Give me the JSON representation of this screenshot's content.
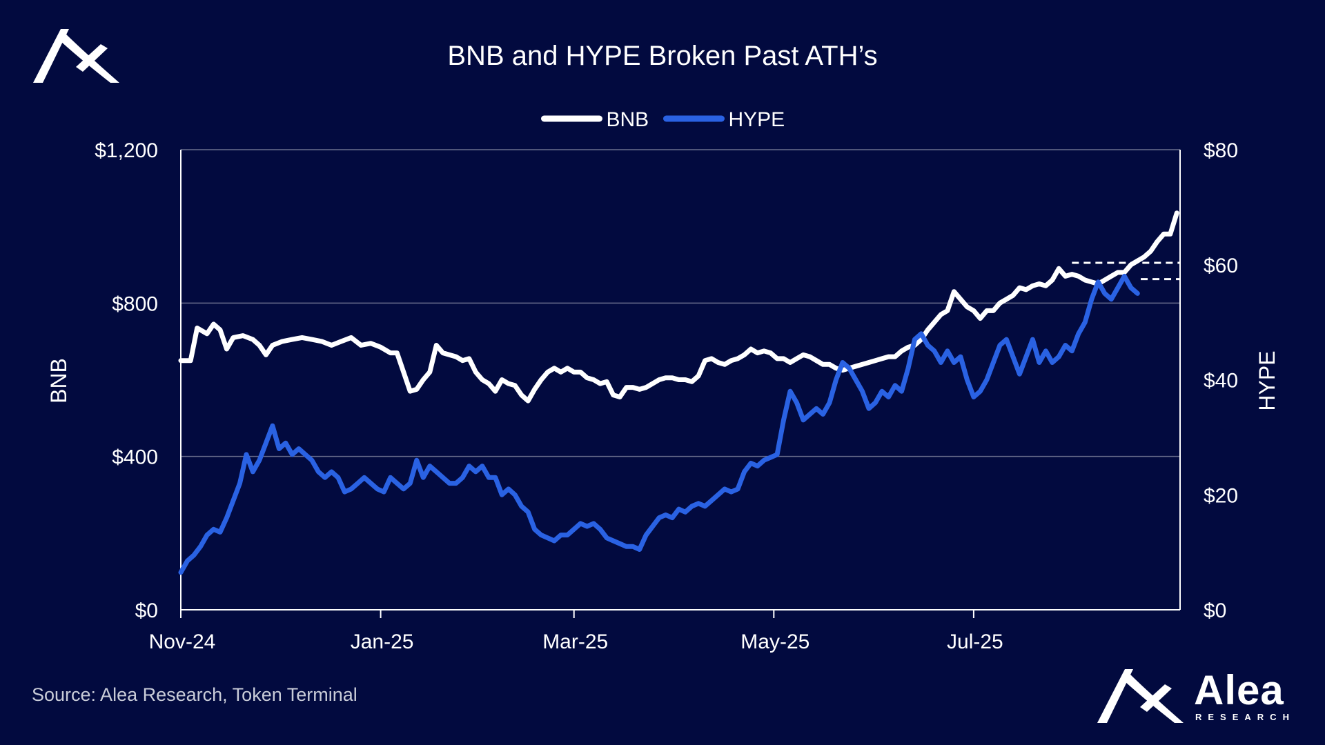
{
  "colors": {
    "background": "#020a3f",
    "bnb": "#ffffff",
    "hype": "#2a62e3",
    "grid": "#6b6f8e"
  },
  "brand": {
    "name": "Alea",
    "tagline": "RESEARCH",
    "icon": "alea-logo-icon"
  },
  "source": "Source: Alea Research, Token Terminal",
  "chart_data": {
    "type": "line",
    "title": "BNB and HYPE Broken Past ATH’s",
    "legend_position": "top-center",
    "grid": {
      "horizontal": true,
      "vertical": false
    },
    "xlim": [
      0,
      305
    ],
    "x_ticks": [
      {
        "day": 0,
        "label": "Nov-24"
      },
      {
        "day": 61,
        "label": "Jan-25"
      },
      {
        "day": 120,
        "label": "Mar-25"
      },
      {
        "day": 181,
        "label": "May-25"
      },
      {
        "day": 242,
        "label": "Jul-25"
      }
    ],
    "y_left": {
      "label": "BNB",
      "lim": [
        0,
        1200
      ],
      "ticks": [
        0,
        400,
        800,
        1200
      ],
      "tick_labels": [
        "$0",
        "$400",
        "$800",
        "$1,200"
      ]
    },
    "y_right": {
      "label": "HYPE",
      "lim": [
        0,
        80
      ],
      "ticks": [
        0,
        20,
        40,
        60,
        80
      ],
      "tick_labels": [
        "$0",
        "$20",
        "$40",
        "$60",
        "$80"
      ]
    },
    "series": [
      {
        "name": "BNB",
        "axis": "left",
        "color": "#ffffff",
        "points": [
          [
            0,
            650
          ],
          [
            3,
            650
          ],
          [
            5,
            735
          ],
          [
            8,
            720
          ],
          [
            10,
            745
          ],
          [
            12,
            730
          ],
          [
            14,
            680
          ],
          [
            16,
            710
          ],
          [
            19,
            715
          ],
          [
            22,
            705
          ],
          [
            24,
            690
          ],
          [
            26,
            665
          ],
          [
            28,
            690
          ],
          [
            31,
            700
          ],
          [
            34,
            705
          ],
          [
            37,
            710
          ],
          [
            40,
            705
          ],
          [
            43,
            700
          ],
          [
            46,
            690
          ],
          [
            49,
            700
          ],
          [
            52,
            710
          ],
          [
            55,
            690
          ],
          [
            58,
            695
          ],
          [
            61,
            685
          ],
          [
            64,
            670
          ],
          [
            66,
            670
          ],
          [
            68,
            620
          ],
          [
            70,
            570
          ],
          [
            72,
            575
          ],
          [
            74,
            600
          ],
          [
            76,
            620
          ],
          [
            78,
            690
          ],
          [
            80,
            670
          ],
          [
            82,
            665
          ],
          [
            84,
            660
          ],
          [
            86,
            650
          ],
          [
            88,
            655
          ],
          [
            90,
            620
          ],
          [
            92,
            600
          ],
          [
            94,
            590
          ],
          [
            96,
            570
          ],
          [
            98,
            600
          ],
          [
            100,
            590
          ],
          [
            102,
            585
          ],
          [
            104,
            560
          ],
          [
            106,
            545
          ],
          [
            108,
            575
          ],
          [
            110,
            600
          ],
          [
            112,
            620
          ],
          [
            114,
            630
          ],
          [
            116,
            620
          ],
          [
            118,
            630
          ],
          [
            120,
            620
          ],
          [
            122,
            620
          ],
          [
            124,
            605
          ],
          [
            126,
            600
          ],
          [
            128,
            590
          ],
          [
            130,
            595
          ],
          [
            132,
            560
          ],
          [
            134,
            555
          ],
          [
            136,
            580
          ],
          [
            138,
            580
          ],
          [
            140,
            575
          ],
          [
            142,
            580
          ],
          [
            144,
            590
          ],
          [
            146,
            600
          ],
          [
            148,
            605
          ],
          [
            150,
            605
          ],
          [
            152,
            600
          ],
          [
            154,
            600
          ],
          [
            156,
            595
          ],
          [
            158,
            610
          ],
          [
            160,
            650
          ],
          [
            162,
            655
          ],
          [
            164,
            645
          ],
          [
            166,
            640
          ],
          [
            168,
            650
          ],
          [
            170,
            655
          ],
          [
            172,
            665
          ],
          [
            174,
            680
          ],
          [
            176,
            670
          ],
          [
            178,
            675
          ],
          [
            180,
            670
          ],
          [
            182,
            655
          ],
          [
            184,
            655
          ],
          [
            186,
            645
          ],
          [
            188,
            655
          ],
          [
            190,
            665
          ],
          [
            192,
            660
          ],
          [
            194,
            650
          ],
          [
            196,
            640
          ],
          [
            198,
            640
          ],
          [
            200,
            630
          ],
          [
            202,
            625
          ],
          [
            204,
            630
          ],
          [
            206,
            635
          ],
          [
            208,
            640
          ],
          [
            210,
            645
          ],
          [
            212,
            650
          ],
          [
            214,
            655
          ],
          [
            216,
            660
          ],
          [
            218,
            660
          ],
          [
            220,
            675
          ],
          [
            222,
            685
          ],
          [
            224,
            690
          ],
          [
            226,
            705
          ],
          [
            228,
            730
          ],
          [
            230,
            750
          ],
          [
            232,
            770
          ],
          [
            234,
            780
          ],
          [
            236,
            830
          ],
          [
            238,
            810
          ],
          [
            240,
            790
          ],
          [
            242,
            780
          ],
          [
            244,
            760
          ],
          [
            246,
            780
          ],
          [
            248,
            780
          ],
          [
            250,
            800
          ],
          [
            252,
            810
          ],
          [
            254,
            820
          ],
          [
            256,
            840
          ],
          [
            258,
            835
          ],
          [
            260,
            845
          ],
          [
            262,
            850
          ],
          [
            264,
            845
          ],
          [
            266,
            860
          ],
          [
            268,
            890
          ],
          [
            270,
            870
          ],
          [
            272,
            875
          ],
          [
            274,
            870
          ],
          [
            276,
            860
          ],
          [
            278,
            855
          ],
          [
            280,
            850
          ],
          [
            282,
            860
          ],
          [
            284,
            870
          ],
          [
            286,
            880
          ],
          [
            288,
            880
          ],
          [
            290,
            900
          ],
          [
            292,
            910
          ],
          [
            294,
            920
          ],
          [
            296,
            935
          ],
          [
            298,
            960
          ],
          [
            300,
            980
          ],
          [
            302,
            980
          ],
          [
            304,
            1035
          ]
        ],
        "reference_line": {
          "value": 905,
          "from_day": 272,
          "to_day": 305
        }
      },
      {
        "name": "HYPE",
        "axis": "right",
        "color": "#2a62e3",
        "points": [
          [
            0,
            6.5
          ],
          [
            2,
            8.5
          ],
          [
            4,
            9.5
          ],
          [
            6,
            11
          ],
          [
            8,
            13
          ],
          [
            10,
            14
          ],
          [
            12,
            13.5
          ],
          [
            14,
            16
          ],
          [
            16,
            19
          ],
          [
            18,
            22
          ],
          [
            20,
            27
          ],
          [
            22,
            24
          ],
          [
            24,
            26
          ],
          [
            26,
            29
          ],
          [
            28,
            32
          ],
          [
            30,
            28
          ],
          [
            32,
            29
          ],
          [
            34,
            27
          ],
          [
            36,
            28
          ],
          [
            38,
            27
          ],
          [
            40,
            26
          ],
          [
            42,
            24
          ],
          [
            44,
            23
          ],
          [
            46,
            24
          ],
          [
            48,
            23
          ],
          [
            50,
            20.5
          ],
          [
            52,
            21
          ],
          [
            54,
            22
          ],
          [
            56,
            23
          ],
          [
            58,
            22
          ],
          [
            60,
            21
          ],
          [
            62,
            20.5
          ],
          [
            64,
            23
          ],
          [
            66,
            22
          ],
          [
            68,
            21
          ],
          [
            70,
            22
          ],
          [
            72,
            26
          ],
          [
            74,
            23
          ],
          [
            76,
            25
          ],
          [
            78,
            24
          ],
          [
            80,
            23
          ],
          [
            82,
            22
          ],
          [
            84,
            22
          ],
          [
            86,
            23
          ],
          [
            88,
            25
          ],
          [
            90,
            24
          ],
          [
            92,
            25
          ],
          [
            94,
            23
          ],
          [
            96,
            23
          ],
          [
            98,
            20
          ],
          [
            100,
            21
          ],
          [
            102,
            20
          ],
          [
            104,
            18
          ],
          [
            106,
            17
          ],
          [
            108,
            14
          ],
          [
            110,
            13
          ],
          [
            112,
            12.5
          ],
          [
            114,
            12
          ],
          [
            116,
            13
          ],
          [
            118,
            13
          ],
          [
            120,
            14
          ],
          [
            122,
            15
          ],
          [
            124,
            14.5
          ],
          [
            126,
            15
          ],
          [
            128,
            14
          ],
          [
            130,
            12.5
          ],
          [
            132,
            12
          ],
          [
            134,
            11.5
          ],
          [
            136,
            11
          ],
          [
            138,
            11
          ],
          [
            140,
            10.5
          ],
          [
            142,
            13
          ],
          [
            144,
            14.5
          ],
          [
            146,
            16
          ],
          [
            148,
            16.5
          ],
          [
            150,
            16
          ],
          [
            152,
            17.5
          ],
          [
            154,
            17
          ],
          [
            156,
            18
          ],
          [
            158,
            18.5
          ],
          [
            160,
            18
          ],
          [
            162,
            19
          ],
          [
            164,
            20
          ],
          [
            166,
            21
          ],
          [
            168,
            20.5
          ],
          [
            170,
            21
          ],
          [
            172,
            24
          ],
          [
            174,
            25.5
          ],
          [
            176,
            25
          ],
          [
            178,
            26
          ],
          [
            180,
            26.5
          ],
          [
            182,
            27
          ],
          [
            184,
            33
          ],
          [
            186,
            38
          ],
          [
            188,
            36
          ],
          [
            190,
            33
          ],
          [
            192,
            34
          ],
          [
            194,
            35
          ],
          [
            196,
            34
          ],
          [
            198,
            36
          ],
          [
            200,
            40
          ],
          [
            202,
            43
          ],
          [
            204,
            42
          ],
          [
            206,
            40
          ],
          [
            208,
            38
          ],
          [
            210,
            35
          ],
          [
            212,
            36
          ],
          [
            214,
            38
          ],
          [
            216,
            37
          ],
          [
            218,
            39
          ],
          [
            220,
            38
          ],
          [
            222,
            42
          ],
          [
            224,
            47
          ],
          [
            226,
            48
          ],
          [
            228,
            46
          ],
          [
            230,
            45
          ],
          [
            232,
            43
          ],
          [
            234,
            45
          ],
          [
            236,
            43
          ],
          [
            238,
            44
          ],
          [
            240,
            40
          ],
          [
            242,
            37
          ],
          [
            244,
            38
          ],
          [
            246,
            40
          ],
          [
            248,
            43
          ],
          [
            250,
            46
          ],
          [
            252,
            47
          ],
          [
            254,
            44
          ],
          [
            256,
            41
          ],
          [
            258,
            44
          ],
          [
            260,
            47
          ],
          [
            262,
            43
          ],
          [
            264,
            45
          ],
          [
            266,
            43
          ],
          [
            268,
            44
          ],
          [
            270,
            46
          ],
          [
            272,
            45
          ],
          [
            274,
            48
          ],
          [
            276,
            50
          ],
          [
            278,
            54
          ],
          [
            280,
            57
          ],
          [
            282,
            55
          ],
          [
            284,
            54
          ],
          [
            286,
            56
          ],
          [
            288,
            58
          ],
          [
            290,
            56
          ],
          [
            292,
            55
          ]
        ],
        "reference_line": {
          "value": 57.5,
          "from_day": 293,
          "to_day": 305
        }
      }
    ]
  }
}
